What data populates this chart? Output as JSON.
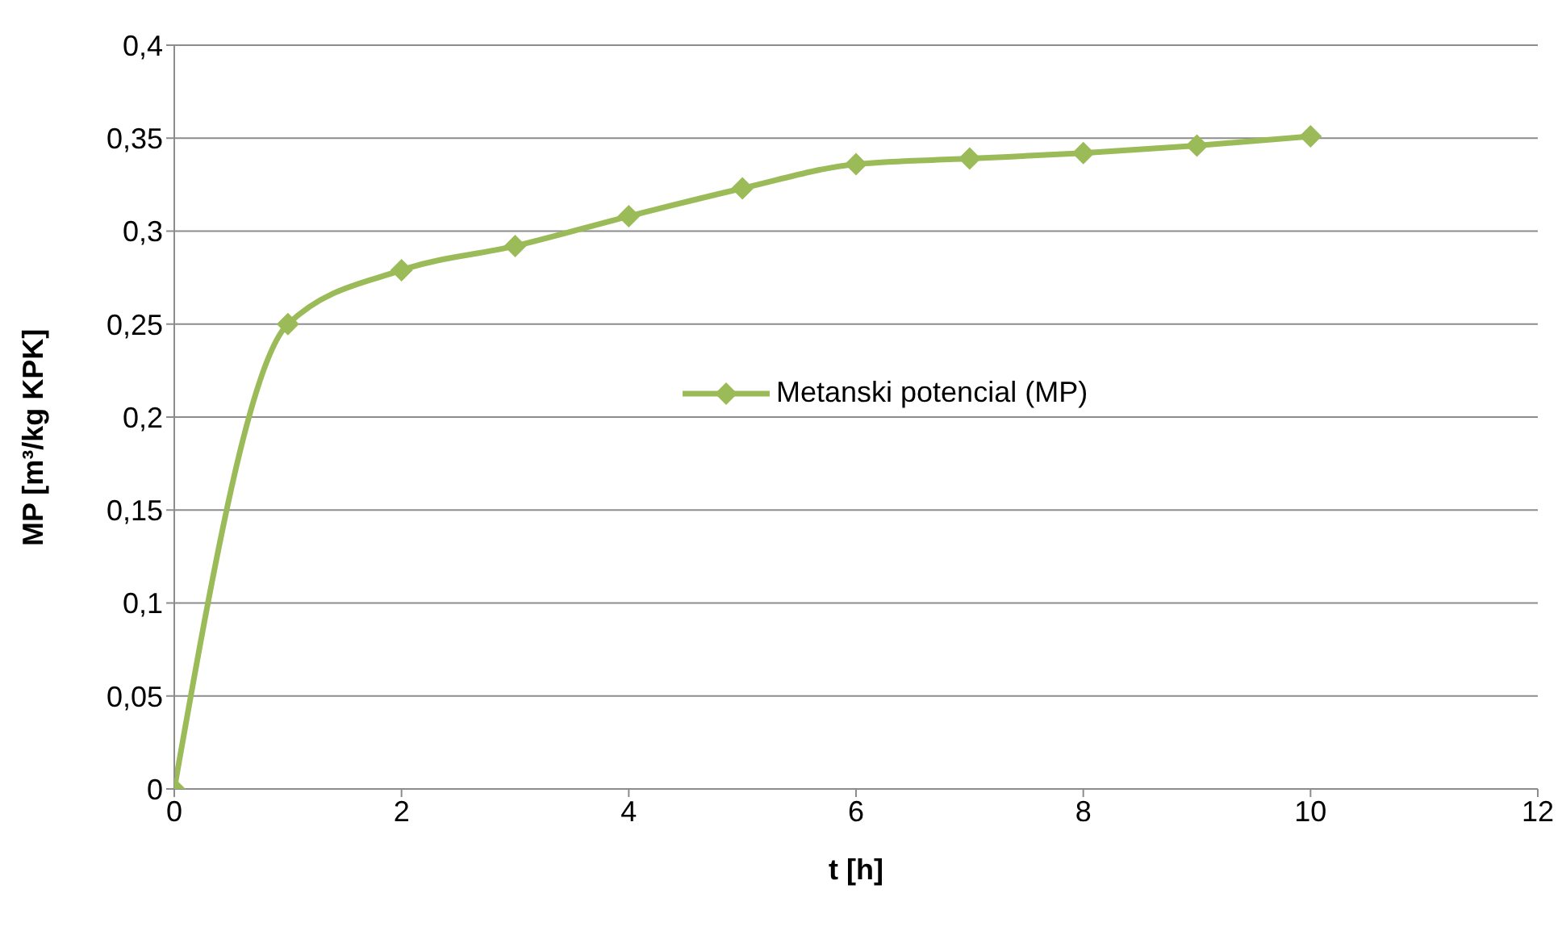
{
  "chart_data": {
    "type": "line",
    "xlabel": "t [h]",
    "ylabel": "MP [m³/kg KPK]",
    "x": [
      0,
      1,
      2,
      3,
      4,
      5,
      6,
      7,
      8,
      9,
      10
    ],
    "series": [
      {
        "name": "Metanski potencial (MP)",
        "color": "#9bbb59",
        "values": [
          0,
          0.25,
          0.279,
          0.292,
          0.308,
          0.323,
          0.336,
          0.339,
          0.342,
          0.346,
          0.351
        ]
      }
    ],
    "xlim": [
      0,
      12
    ],
    "xticks": [
      0,
      2,
      4,
      6,
      8,
      10,
      12
    ],
    "ylim": [
      0,
      0.4
    ],
    "yticks": [
      0,
      {
        "value": 0.05,
        "label": "0,05"
      },
      {
        "value": 0.1,
        "label": "0,1"
      },
      {
        "value": 0.15,
        "label": "0,15"
      },
      {
        "value": 0.2,
        "label": "0,2"
      },
      {
        "value": 0.25,
        "label": "0,25"
      },
      {
        "value": 0.3,
        "label": "0,3"
      },
      {
        "value": 0.35,
        "label": "0,35"
      },
      {
        "value": 0.4,
        "label": "0,4"
      }
    ],
    "grid": "y",
    "legend": "right",
    "marker": "diamond",
    "line_style": "solid"
  }
}
